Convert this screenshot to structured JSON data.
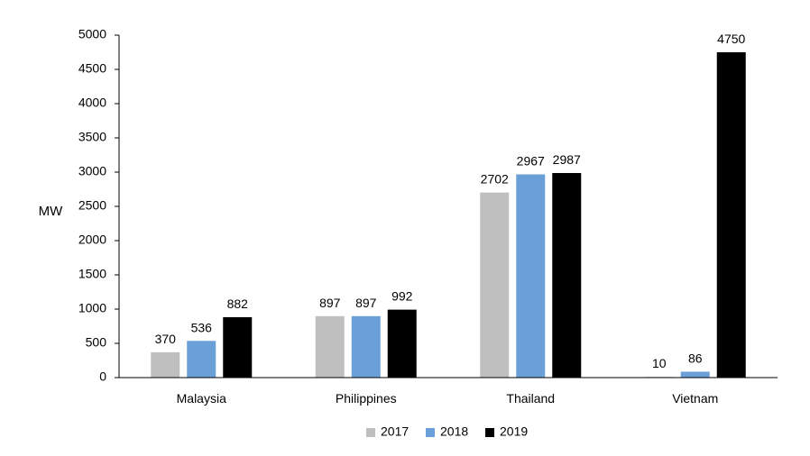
{
  "chart_data": {
    "type": "bar",
    "title": "",
    "xlabel": "",
    "ylabel": "MW",
    "ylim": [
      0,
      5000
    ],
    "yticks": [
      0,
      500,
      1000,
      1500,
      2000,
      2500,
      3000,
      3500,
      4000,
      4500,
      5000
    ],
    "categories": [
      "Malaysia",
      "Philippines",
      "Thailand",
      "Vietnam"
    ],
    "series": [
      {
        "name": "2017",
        "color": "#bfbfbf",
        "values": [
          370,
          897,
          2702,
          10
        ]
      },
      {
        "name": "2018",
        "color": "#6a9fd8",
        "values": [
          536,
          897,
          2967,
          86
        ]
      },
      {
        "name": "2019",
        "color": "#000000",
        "values": [
          882,
          992,
          2987,
          4750
        ]
      }
    ],
    "data_labels": true,
    "legend_position": "bottom-center",
    "grid": false
  }
}
